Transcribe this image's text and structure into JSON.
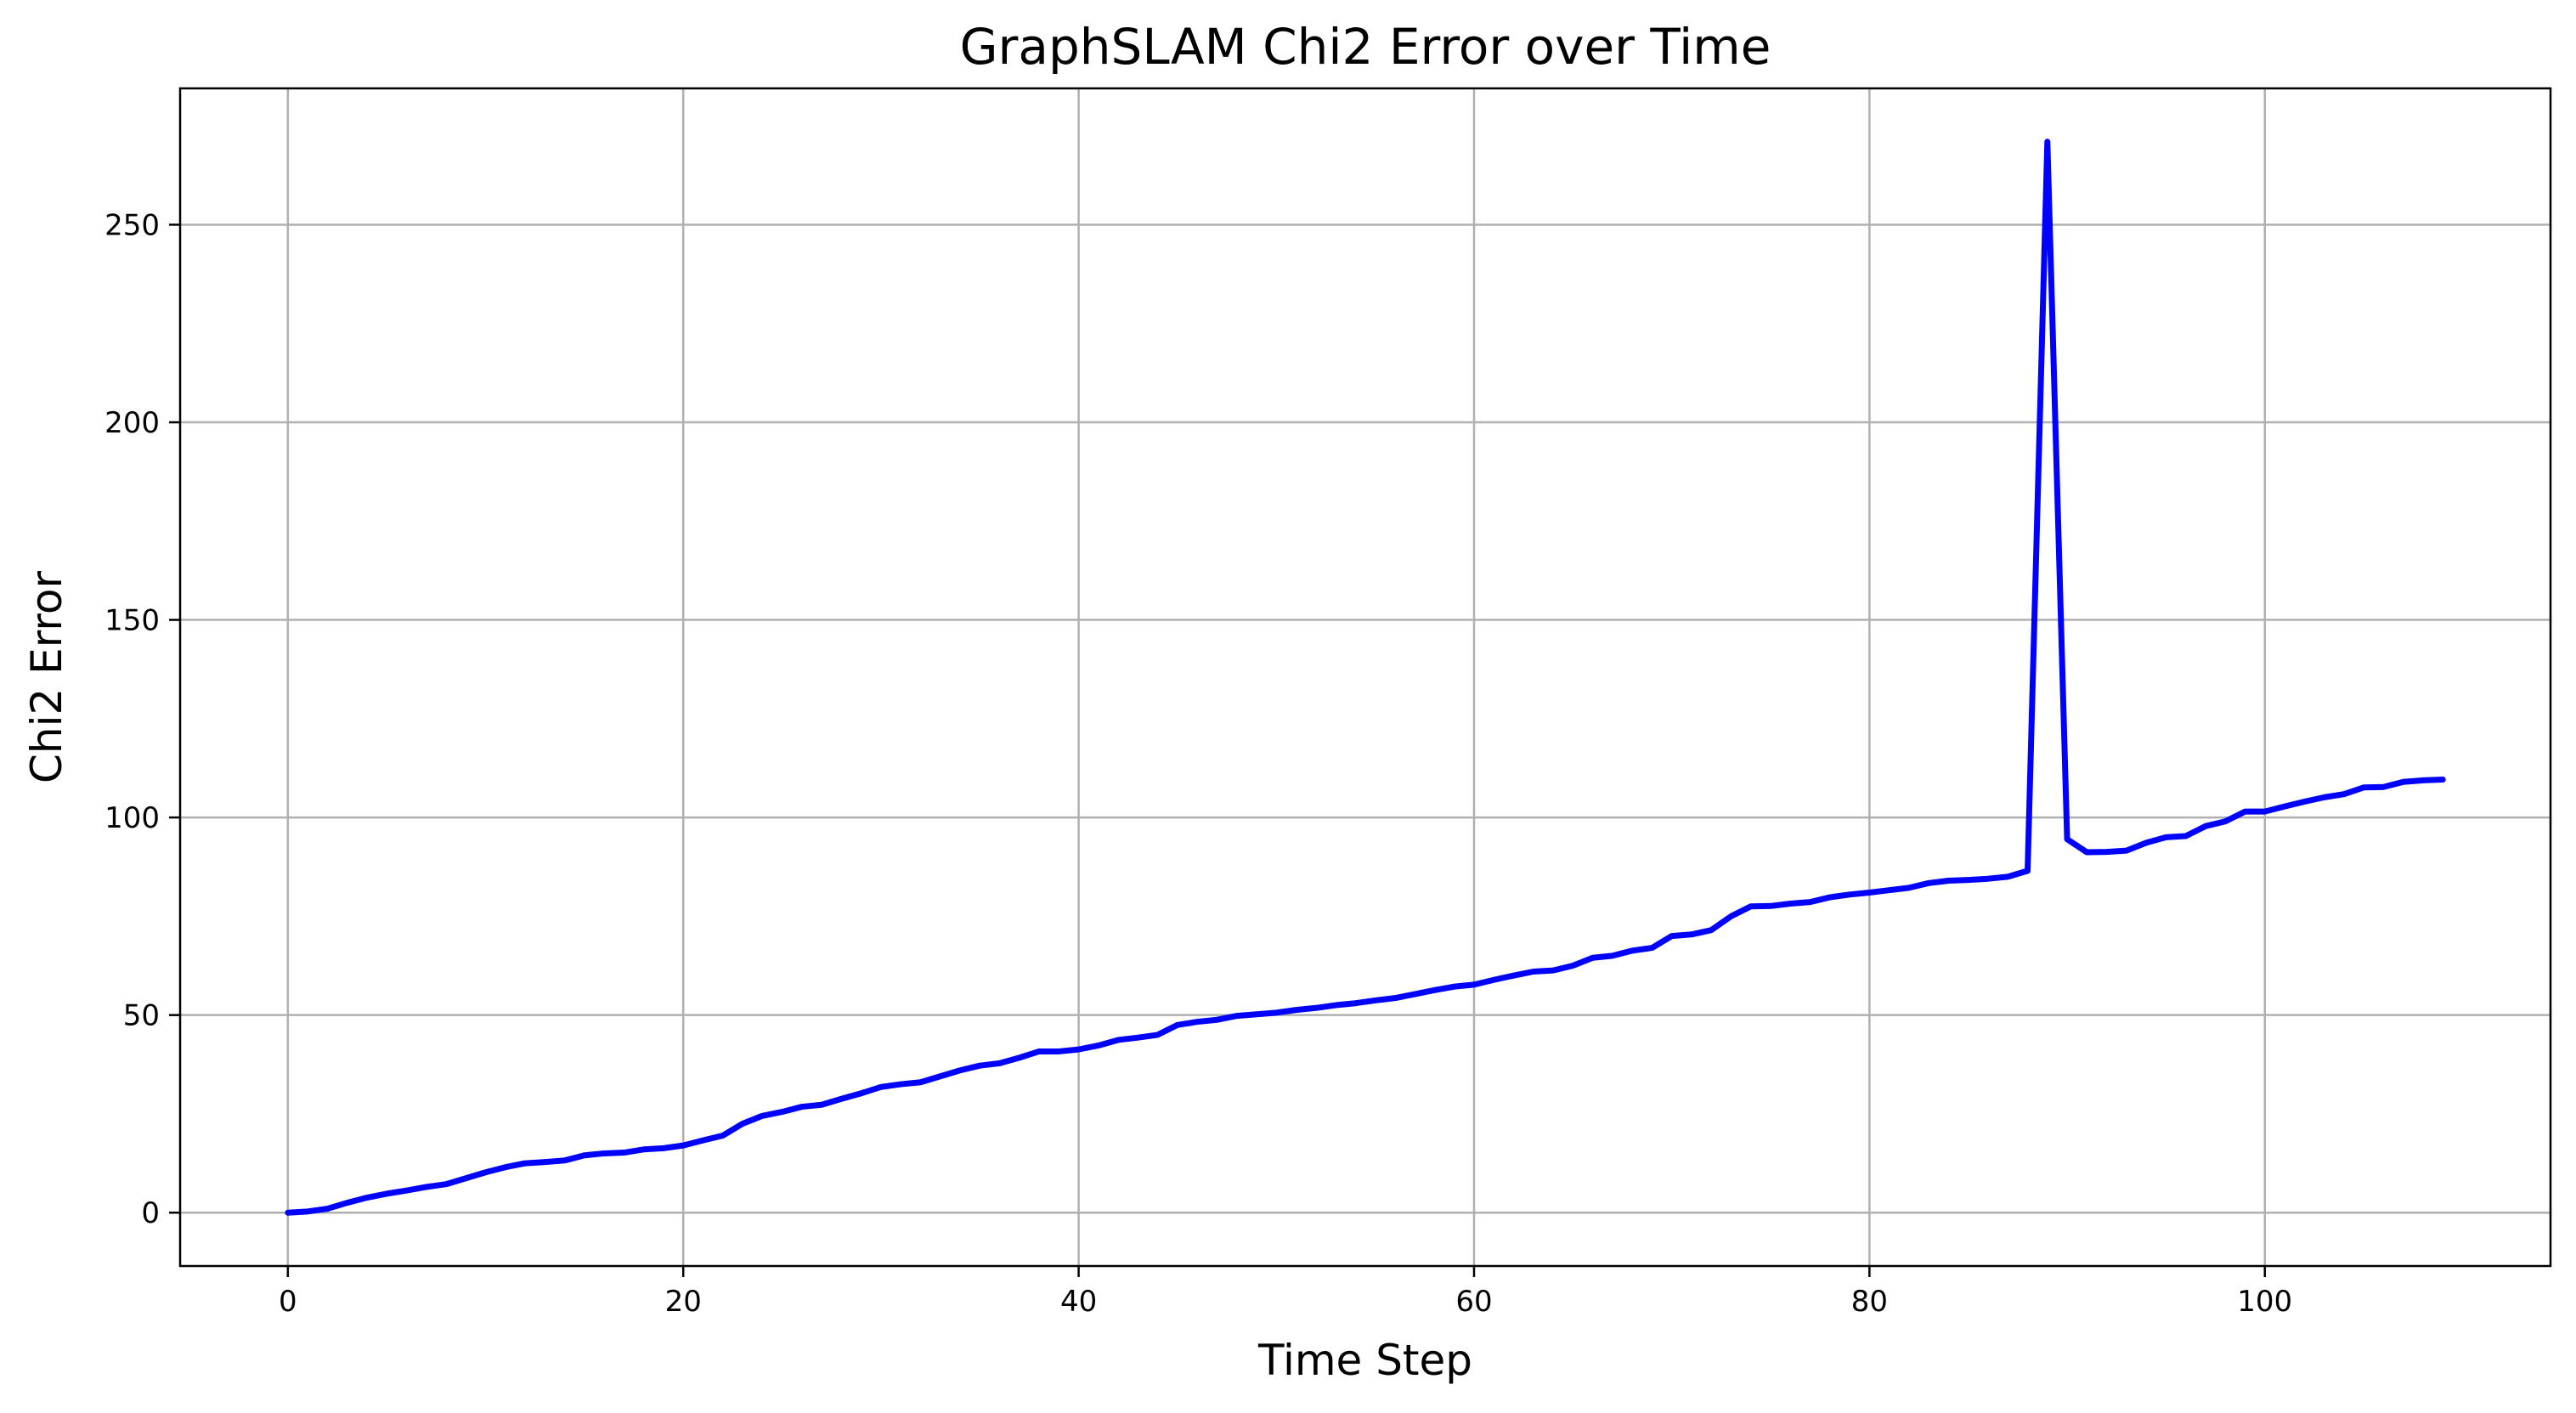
{
  "chart_data": {
    "type": "line",
    "title": "GraphSLAM Chi2 Error over Time",
    "xlabel": "Time Step",
    "ylabel": "Chi2 Error",
    "xlim": [
      -5.45,
      114.45
    ],
    "ylim": [
      -13.5,
      284.5
    ],
    "xticks": [
      0,
      20,
      40,
      60,
      80,
      100
    ],
    "yticks": [
      0,
      50,
      100,
      150,
      200,
      250
    ],
    "grid": true,
    "line_color": "#0000ff",
    "series": [
      {
        "x": [
          0,
          1,
          2,
          3,
          4,
          5,
          6,
          7,
          8,
          9,
          10,
          11,
          12,
          13,
          14,
          15,
          16,
          17,
          18,
          19,
          20,
          21,
          22,
          23,
          24,
          25,
          26,
          27,
          28,
          29,
          30,
          31,
          32,
          33,
          34,
          35,
          36,
          37,
          38,
          39,
          40,
          41,
          42,
          43,
          44,
          45,
          46,
          47,
          48,
          49,
          50,
          51,
          52,
          53,
          54,
          55,
          56,
          57,
          58,
          59,
          60,
          61,
          62,
          63,
          64,
          65,
          66,
          67,
          68,
          69,
          70,
          71,
          72,
          73,
          74,
          75,
          76,
          77,
          78,
          79,
          80,
          81,
          82,
          83,
          84,
          85,
          86,
          87,
          88,
          89,
          90,
          91,
          92,
          93,
          94,
          95,
          96,
          97,
          98,
          99,
          100,
          101,
          102,
          103,
          104,
          105,
          106,
          107,
          108,
          109
        ],
        "values": [
          0,
          0.3,
          1.0,
          2.5,
          3.8,
          4.8,
          5.6,
          6.5,
          7.2,
          8.7,
          10.2,
          11.5,
          12.5,
          12.8,
          13.2,
          14.5,
          15.0,
          15.2,
          16.0,
          16.3,
          17.0,
          18.3,
          19.5,
          22.5,
          24.5,
          25.5,
          26.8,
          27.3,
          28.8,
          30.2,
          31.8,
          32.5,
          33.0,
          34.5,
          36.0,
          37.2,
          37.8,
          39.2,
          40.8,
          40.8,
          41.3,
          42.3,
          43.7,
          44.3,
          45.0,
          47.5,
          48.3,
          48.8,
          49.8,
          50.2,
          50.6,
          51.3,
          51.8,
          52.5,
          53.0,
          53.7,
          54.3,
          55.3,
          56.3,
          57.2,
          57.7,
          58.9,
          60.0,
          61.0,
          61.3,
          62.5,
          64.5,
          65.0,
          66.3,
          67.0,
          70.0,
          70.4,
          71.5,
          75.0,
          77.5,
          77.6,
          78.2,
          78.6,
          79.8,
          80.5,
          81.0,
          81.6,
          82.2,
          83.4,
          84.0,
          84.2,
          84.5,
          85.0,
          86.5,
          271.0,
          94.5,
          91.2,
          91.3,
          91.6,
          93.6,
          95.0,
          95.3,
          97.8,
          99.0,
          101.5,
          101.5,
          102.8,
          104.0,
          105.1,
          105.9,
          107.6,
          107.7,
          109.0,
          109.4,
          109.6
        ]
      }
    ]
  }
}
